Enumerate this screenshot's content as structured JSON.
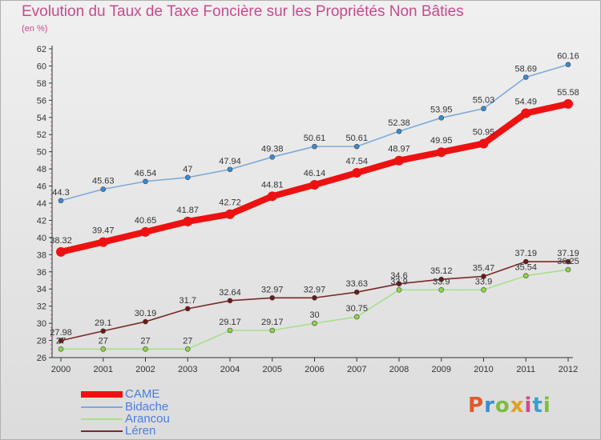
{
  "page": {
    "title": "Evolution du Taux de Taxe Foncière sur les Propriétés Non Bâties",
    "unit_label": "(en %)",
    "logo_text": "Proxiti",
    "logo_colors": [
      "#e05a2b",
      "#3a8fd1",
      "#7bbf3a",
      "#e0a020",
      "#d04a8a",
      "#3aa0d0",
      "#7bbf3a"
    ]
  },
  "chart_data": {
    "type": "line",
    "title": "Evolution du Taux de Taxe Foncière sur les Propriétés Non Bâties",
    "ylabel": "(en %)",
    "xlabel": "",
    "categories": [
      "2000",
      "2001",
      "2002",
      "2003",
      "2004",
      "2005",
      "2006",
      "2007",
      "2008",
      "2009",
      "2010",
      "2011",
      "2012"
    ],
    "ylim": [
      26,
      62
    ],
    "ytick_step": 2,
    "grid": false,
    "legend_placement": "bottom-left",
    "series": [
      {
        "name": "CAME",
        "color": "#ee1111",
        "marker_color": "#ee1111",
        "thick": true,
        "values": [
          38.32,
          39.47,
          40.65,
          41.87,
          42.72,
          44.81,
          46.14,
          47.54,
          48.97,
          49.95,
          50.95,
          54.49,
          55.58
        ],
        "labels": [
          "38.32",
          "39.47",
          "40.65",
          "41.87",
          "42.72",
          "44.81",
          "46.14",
          "47.54",
          "48.97",
          "49.95",
          "50.95",
          "54.49",
          "55.58"
        ]
      },
      {
        "name": "Bidache",
        "color": "#7eaad8",
        "marker_color": "#3b8ad0",
        "thick": false,
        "values": [
          44.3,
          45.63,
          46.54,
          47,
          47.94,
          49.38,
          50.61,
          50.61,
          52.38,
          53.95,
          55.03,
          58.69,
          60.16
        ],
        "labels": [
          "44.3",
          "45.63",
          "46.54",
          "47",
          "47.94",
          "49.38",
          "50.61",
          "50.61",
          "52.38",
          "53.95",
          "55.03",
          "58.69",
          "60.16"
        ]
      },
      {
        "name": "Arancou",
        "color": "#a8e08a",
        "marker_color": "#8fd44a",
        "thick": false,
        "values": [
          27,
          27,
          27,
          27,
          29.17,
          29.17,
          30,
          30.75,
          33.9,
          33.9,
          33.9,
          35.54,
          36.25
        ],
        "labels": [
          "27",
          "27",
          "27",
          "27",
          "29.17",
          "29.17",
          "30",
          "30.75",
          "33.9",
          "33.9",
          "33.9",
          "35.54",
          "36.25"
        ]
      },
      {
        "name": "Léren",
        "color": "#7a2a2a",
        "marker_color": "#6a1a1a",
        "thick": false,
        "values": [
          27.98,
          29.1,
          30.19,
          31.7,
          32.64,
          32.97,
          32.97,
          33.63,
          34.6,
          35.12,
          35.47,
          37.19,
          37.19
        ],
        "labels": [
          "27.98",
          "29.1",
          "30.19",
          "31.7",
          "32.64",
          "32.97",
          "32.97",
          "33.63",
          "34.6",
          "35.12",
          "35.47",
          "37.19",
          "37.19"
        ]
      }
    ]
  }
}
